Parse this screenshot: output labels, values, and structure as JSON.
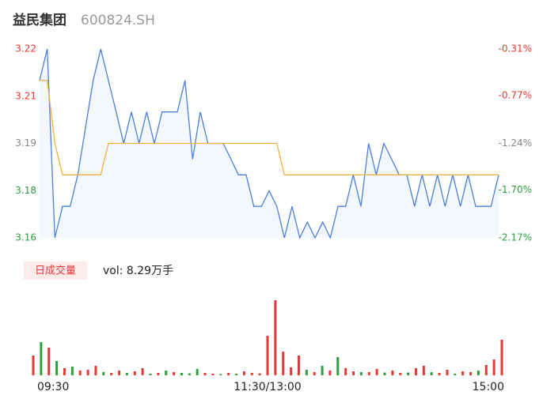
{
  "header": {
    "name": "益民集团",
    "code": "600824.SH"
  },
  "chart_data": [
    {
      "type": "line",
      "xlim": [
        0,
        240
      ],
      "x": [
        0,
        4,
        8,
        12,
        16,
        20,
        24,
        28,
        32,
        36,
        40,
        44,
        48,
        52,
        56,
        60,
        64,
        68,
        72,
        76,
        80,
        84,
        88,
        92,
        96,
        100,
        104,
        108,
        112,
        116,
        120,
        124,
        128,
        132,
        136,
        140,
        144,
        148,
        152,
        156,
        160,
        164,
        168,
        172,
        176,
        180,
        184,
        188,
        192,
        196,
        200,
        204,
        208,
        212,
        216,
        220,
        224,
        228,
        232,
        236,
        240
      ],
      "series": [
        {
          "name": "price",
          "color": "#4a7fe0",
          "fill": "#f3f7fe",
          "values": [
            3.21,
            3.22,
            3.16,
            3.17,
            3.17,
            3.18,
            3.195,
            3.21,
            3.22,
            3.21,
            3.2,
            3.19,
            3.2,
            3.19,
            3.2,
            3.19,
            3.2,
            3.2,
            3.2,
            3.21,
            3.185,
            3.2,
            3.19,
            3.19,
            3.19,
            3.185,
            3.18,
            3.18,
            3.17,
            3.17,
            3.175,
            3.17,
            3.16,
            3.17,
            3.16,
            3.165,
            3.16,
            3.165,
            3.16,
            3.17,
            3.17,
            3.18,
            3.17,
            3.19,
            3.18,
            3.19,
            3.185,
            3.18,
            3.18,
            3.17,
            3.18,
            3.17,
            3.18,
            3.17,
            3.18,
            3.17,
            3.18,
            3.17,
            3.17,
            3.17,
            3.18
          ]
        },
        {
          "name": "avg",
          "color": "#f0b23a",
          "values": [
            3.21,
            3.21,
            3.19,
            3.18,
            3.18,
            3.18,
            3.18,
            3.18,
            3.18,
            3.19,
            3.19,
            3.19,
            3.19,
            3.19,
            3.19,
            3.19,
            3.19,
            3.19,
            3.19,
            3.19,
            3.19,
            3.19,
            3.19,
            3.19,
            3.19,
            3.19,
            3.19,
            3.19,
            3.19,
            3.19,
            3.19,
            3.19,
            3.18,
            3.18,
            3.18,
            3.18,
            3.18,
            3.18,
            3.18,
            3.18,
            3.18,
            3.18,
            3.18,
            3.18,
            3.18,
            3.18,
            3.18,
            3.18,
            3.18,
            3.18,
            3.18,
            3.18,
            3.18,
            3.18,
            3.18,
            3.18,
            3.18,
            3.18,
            3.18,
            3.18,
            3.18
          ]
        }
      ],
      "ylim": [
        3.16,
        3.22
      ],
      "yticks": [
        3.22,
        {
          "value": 3.205,
          "label": "3.21"
        },
        3.19,
        {
          "value": 3.175,
          "label": "3.18"
        },
        3.16
      ],
      "y2lim": [
        -2.17,
        -0.31
      ],
      "y2ticks": [
        {
          "value": -0.31,
          "label": "-0.31%"
        },
        {
          "value": -0.77,
          "label": "-0.77%"
        },
        {
          "value": -1.24,
          "label": "-1.24%"
        },
        {
          "value": -1.7,
          "label": "-1.70%"
        },
        {
          "value": -2.17,
          "label": "-2.17%"
        }
      ],
      "tick_colors": [
        "#e53935",
        "#e53935",
        "#888888",
        "#2e9e3f",
        "#2e9e3f"
      ]
    },
    {
      "type": "bar",
      "label": "日成交量",
      "annotation": "vol: 8.29万手",
      "xlim": [
        0,
        240
      ],
      "x": [
        0,
        4,
        8,
        12,
        16,
        20,
        24,
        28,
        32,
        36,
        40,
        44,
        48,
        52,
        56,
        60,
        64,
        68,
        72,
        76,
        80,
        84,
        88,
        92,
        96,
        100,
        104,
        108,
        112,
        116,
        120,
        124,
        128,
        132,
        136,
        140,
        144,
        148,
        152,
        156,
        160,
        164,
        168,
        172,
        176,
        180,
        184,
        188,
        192,
        196,
        200,
        204,
        208,
        212,
        216,
        220,
        224,
        228,
        232,
        236,
        240
      ],
      "values": [
        250,
        420,
        350,
        180,
        90,
        110,
        60,
        70,
        120,
        40,
        30,
        60,
        30,
        50,
        90,
        20,
        30,
        60,
        40,
        30,
        25,
        80,
        30,
        20,
        15,
        30,
        20,
        50,
        30,
        25,
        500,
        950,
        300,
        100,
        250,
        70,
        40,
        120,
        60,
        230,
        90,
        50,
        40,
        40,
        80,
        35,
        60,
        30,
        35,
        90,
        120,
        40,
        30,
        70,
        20,
        50,
        40,
        60,
        130,
        200,
        450
      ],
      "colors": [
        "#e53935",
        "#2e9e3f",
        "#e53935",
        "#2e9e3f",
        "#e53935",
        "#2e9e3f",
        "#e53935",
        "#e53935",
        "#e53935",
        "#2e9e3f",
        "#e53935",
        "#e53935",
        "#2e9e3f",
        "#e53935",
        "#e53935",
        "#2e9e3f",
        "#e53935",
        "#2e9e3f",
        "#e53935",
        "#2e9e3f",
        "#2e9e3f",
        "#2e9e3f",
        "#e53935",
        "#e53935",
        "#2e9e3f",
        "#e53935",
        "#2e9e3f",
        "#e53935",
        "#e53935",
        "#e53935",
        "#e53935",
        "#e53935",
        "#e53935",
        "#e53935",
        "#e53935",
        "#2e9e3f",
        "#e53935",
        "#2e9e3f",
        "#e53935",
        "#2e9e3f",
        "#e53935",
        "#e53935",
        "#2e9e3f",
        "#e53935",
        "#e53935",
        "#2e9e3f",
        "#e53935",
        "#e53935",
        "#2e9e3f",
        "#e53935",
        "#e53935",
        "#2e9e3f",
        "#e53935",
        "#e53935",
        "#2e9e3f",
        "#e53935",
        "#e53935",
        "#2e9e3f",
        "#e53935",
        "#e53935",
        "#e53935"
      ],
      "ylim": [
        0,
        1000
      ],
      "xticks": [
        {
          "value": 0,
          "label": "09:30"
        },
        {
          "value": 120,
          "label": "11:30/13:00"
        },
        {
          "value": 240,
          "label": "15:00"
        }
      ]
    }
  ]
}
